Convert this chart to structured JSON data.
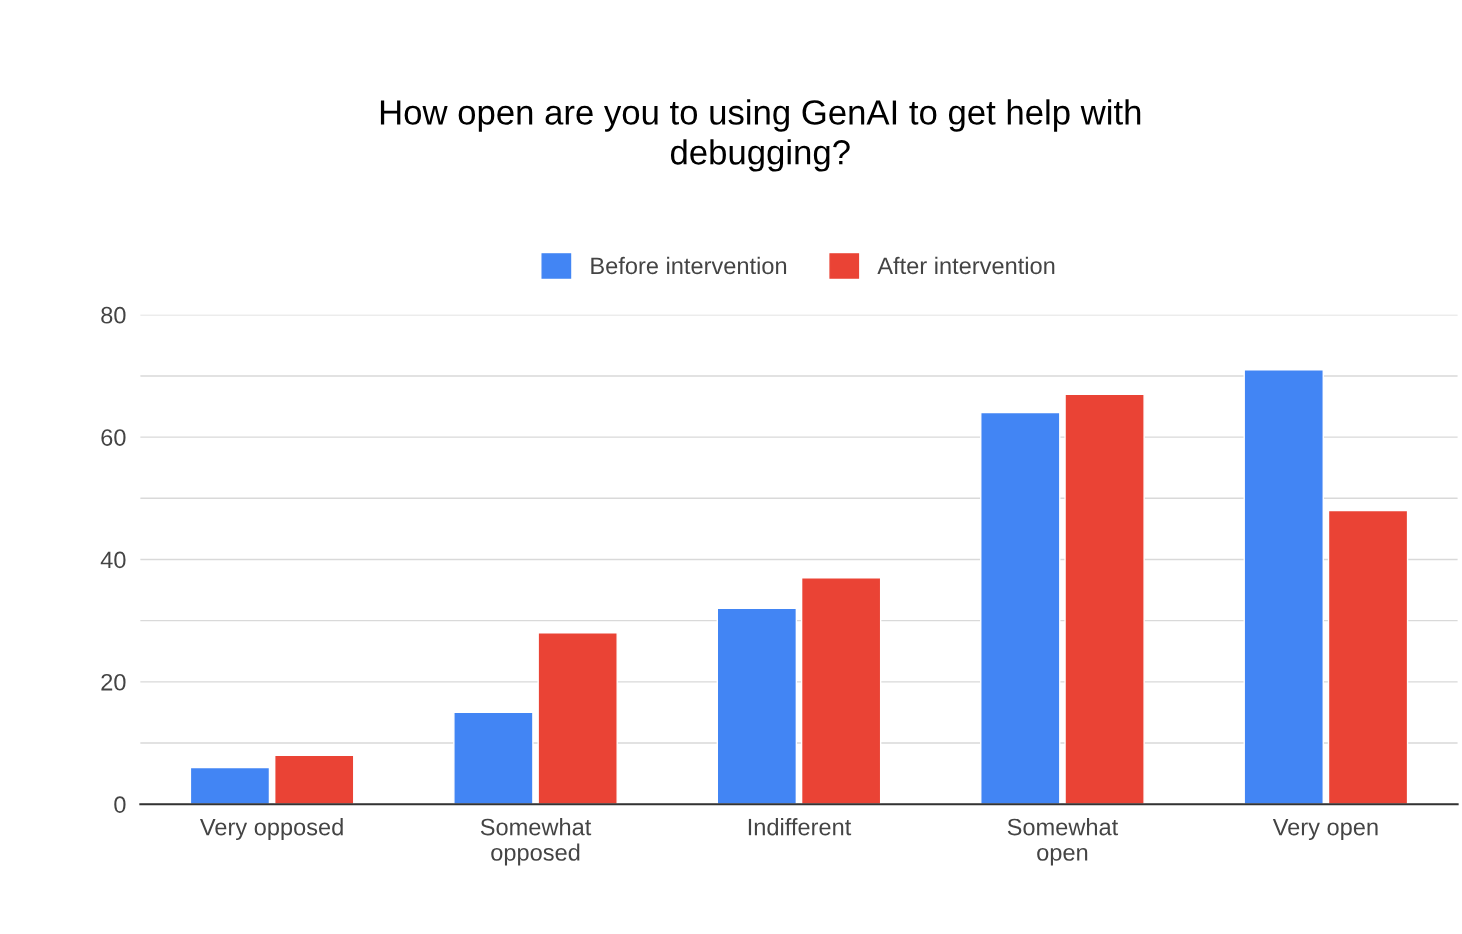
{
  "chart_data": {
    "type": "bar",
    "title": "How open are you to using GenAI to get help with\ndebugging?",
    "categories": [
      "Very opposed",
      "Somewhat\nopposed",
      "Indifferent",
      "Somewhat\nopen",
      "Very open"
    ],
    "series": [
      {
        "name": "Before intervention",
        "color": "#4285f4",
        "values": [
          6,
          15,
          32,
          64,
          71
        ]
      },
      {
        "name": "After intervention",
        "color": "#ea4335",
        "values": [
          8,
          28,
          37,
          67,
          48
        ]
      }
    ],
    "ylim": [
      0,
      80
    ],
    "yticks": [
      0,
      {
        "value": 10,
        "label": null
      },
      20,
      {
        "value": 30,
        "label": null
      },
      40,
      {
        "value": 50,
        "label": null
      },
      60,
      {
        "value": 70,
        "label": null
      },
      80
    ],
    "grid": "y",
    "legend": "top"
  }
}
